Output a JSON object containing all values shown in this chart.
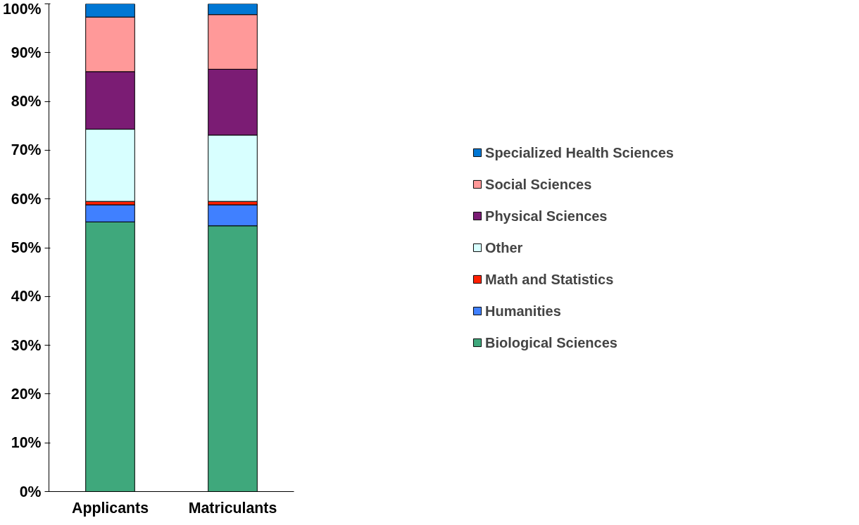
{
  "chart_data": {
    "type": "bar",
    "stacked": true,
    "categories": [
      "Applicants",
      "Matriculants"
    ],
    "series": [
      {
        "name": "Biological Sciences",
        "color": "#3fa87c",
        "values": [
          55.3,
          54.5
        ]
      },
      {
        "name": "Humanities",
        "color": "#4080ff",
        "values": [
          3.5,
          4.3
        ]
      },
      {
        "name": "Math and Statistics",
        "color": "#ff2000",
        "values": [
          0.7,
          0.7
        ]
      },
      {
        "name": "Other",
        "color": "#d8ffff",
        "values": [
          14.8,
          13.6
        ]
      },
      {
        "name": "Physical Sciences",
        "color": "#7b1c74",
        "values": [
          11.8,
          13.5
        ]
      },
      {
        "name": "Social Sciences",
        "color": "#ff9999",
        "values": [
          11.2,
          11.2
        ]
      },
      {
        "name": "Specialized Health Sciences",
        "color": "#0077d4",
        "values": [
          2.7,
          2.2
        ]
      }
    ],
    "ylim": [
      0,
      100
    ],
    "yticks": [
      {
        "value": 0,
        "label": "0%"
      },
      {
        "value": 10,
        "label": "10%"
      },
      {
        "value": 20,
        "label": "20%"
      },
      {
        "value": 30,
        "label": "30%"
      },
      {
        "value": 40,
        "label": "40%"
      },
      {
        "value": 50,
        "label": "50%"
      },
      {
        "value": 60,
        "label": "60%"
      },
      {
        "value": 70,
        "label": "70%"
      },
      {
        "value": 80,
        "label": "80%"
      },
      {
        "value": 90,
        "label": "90%"
      },
      {
        "value": 100,
        "label": "100%"
      }
    ],
    "grid": false,
    "legend": "right"
  }
}
